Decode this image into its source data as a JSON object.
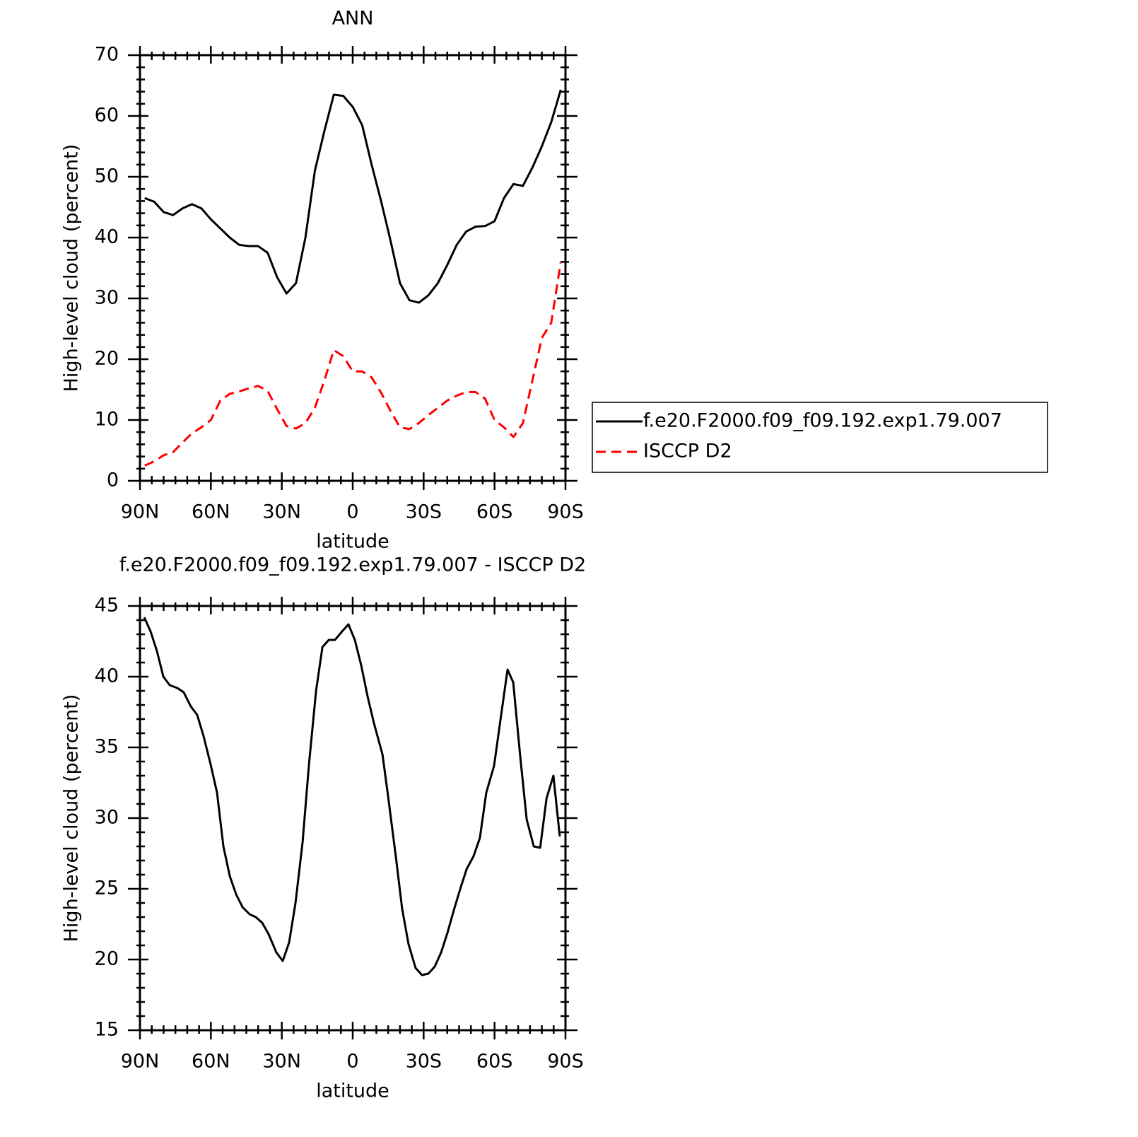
{
  "chart_data": [
    {
      "type": "line",
      "title": "ANN",
      "xlabel": "latitude",
      "ylabel": "High-level cloud (percent)",
      "x": [
        88,
        84,
        80,
        76,
        72,
        68,
        64,
        60,
        56,
        52,
        48,
        44,
        40,
        36,
        32,
        28,
        24,
        20,
        16,
        12,
        8,
        4,
        0,
        -4,
        -8,
        -12,
        -16,
        -20,
        -24,
        -28,
        -32,
        -36,
        -40,
        -44,
        -48,
        -52,
        -56,
        -60,
        -64,
        -68,
        -72,
        -76,
        -80,
        -84,
        -88
      ],
      "series": [
        {
          "name": "ISCCP D2",
          "color": "#ff0000",
          "line_style": "dashed",
          "values": [
            2.5,
            3.2,
            4.2,
            4.7,
            6.3,
            7.8,
            8.8,
            10.0,
            13.2,
            14.3,
            14.7,
            15.2,
            15.6,
            14.8,
            11.8,
            9.0,
            8.6,
            9.5,
            12.0,
            16.5,
            21.5,
            20.5,
            18.0,
            18.0,
            17.0,
            14.5,
            11.5,
            8.8,
            8.5,
            9.5,
            10.8,
            12.0,
            13.2,
            14.0,
            14.6,
            14.6,
            13.5,
            10.0,
            8.8,
            7.2,
            9.5,
            16.5,
            23.5,
            26.0,
            36.0
          ]
        },
        {
          "name": "f.e20.F2000.f09_f09.192.exp1.79.007",
          "color": "#000000",
          "line_style": "solid",
          "values": [
            46.5,
            45.9,
            44.2,
            43.7,
            44.8,
            45.5,
            44.8,
            43.0,
            41.5,
            40.0,
            38.8,
            38.6,
            38.6,
            37.5,
            33.5,
            30.8,
            32.5,
            40.0,
            51.0,
            57.5,
            63.5,
            63.3,
            61.5,
            58.5,
            52.0,
            46.0,
            39.5,
            32.5,
            29.7,
            29.3,
            30.5,
            32.5,
            35.5,
            38.8,
            41.0,
            41.8,
            41.9,
            42.7,
            46.5,
            48.8,
            48.5,
            51.5,
            55.0,
            59.0,
            64.3
          ]
        }
      ],
      "xlim": [
        90,
        -90
      ],
      "xticks": [
        {
          "value": 90,
          "label": "90N"
        },
        {
          "value": 60,
          "label": "60N"
        },
        {
          "value": 30,
          "label": "30N"
        },
        0,
        {
          "value": -30,
          "label": "30S"
        },
        {
          "value": -60,
          "label": "60S"
        },
        {
          "value": -90,
          "label": "90S"
        }
      ],
      "xminor": [
        85,
        80,
        75,
        70,
        65,
        55,
        50,
        45,
        40,
        35,
        25,
        20,
        15,
        10,
        5,
        -5,
        -10,
        -15,
        -20,
        -25,
        -35,
        -40,
        -45,
        -50,
        -55,
        -65,
        -70,
        -75,
        -80,
        -85
      ],
      "ylim": [
        0,
        70
      ],
      "yticks": [
        0,
        10,
        20,
        30,
        40,
        50,
        60,
        70
      ],
      "yminor": [
        2,
        4,
        6,
        8,
        12,
        14,
        16,
        18,
        22,
        24,
        26,
        28,
        32,
        34,
        36,
        38,
        42,
        44,
        46,
        48,
        52,
        54,
        56,
        58,
        62,
        64,
        66,
        68
      ],
      "legend": "right"
    },
    {
      "type": "line",
      "title": "f.e20.F2000.f09_f09.192.exp1.79.007 - ISCCP D2",
      "xlabel": "latitude",
      "ylabel": "High-level cloud (percent)",
      "x": [
        88.2,
        85.5,
        82.8,
        80.1,
        77.4,
        74.2,
        71.5,
        68.5,
        65.8,
        63.1,
        60.1,
        57.4,
        54.7,
        52.0,
        49.3,
        46.6,
        43.6,
        41.0,
        38.3,
        35.6,
        32.3,
        29.6,
        26.9,
        24.2,
        21.2,
        18.5,
        15.5,
        12.8,
        10.1,
        7.5,
        4.5,
        1.8,
        -0.9,
        -3.6,
        -6.3,
        -9.0,
        -12.6,
        -15.0,
        -18.3,
        -20.9,
        -23.6,
        -26.6,
        -29.3,
        -32.0,
        -34.7,
        -37.4,
        -40.1,
        -42.8,
        -45.5,
        -48.2,
        -51.1,
        -53.8,
        -56.5,
        -59.8,
        -62.8,
        -65.5,
        -67.9,
        -70.9,
        -73.6,
        -76.6,
        -79.3,
        -82.0,
        -84.9,
        -87.6
      ],
      "series": [
        {
          "color": "#000000",
          "line_style": "solid",
          "values": [
            44.2,
            43.2,
            41.8,
            40.0,
            39.4,
            39.2,
            38.9,
            37.9,
            37.3,
            35.8,
            33.8,
            31.8,
            28.0,
            25.9,
            24.6,
            23.7,
            23.2,
            23.0,
            22.6,
            21.8,
            20.5,
            19.9,
            21.2,
            24.0,
            28.3,
            33.8,
            39.0,
            42.1,
            42.6,
            42.6,
            43.2,
            43.7,
            42.6,
            40.8,
            38.6,
            36.7,
            34.5,
            31.5,
            27.2,
            23.6,
            21.1,
            19.4,
            18.9,
            19.0,
            19.5,
            20.5,
            21.9,
            23.5,
            25.0,
            26.4,
            27.3,
            28.6,
            31.8,
            33.7,
            37.3,
            40.5,
            39.6,
            34.3,
            29.9,
            28.0,
            27.9,
            31.4,
            33.0,
            28.7
          ]
        }
      ],
      "xlim": [
        90,
        -90
      ],
      "xticks": [
        {
          "value": 90,
          "label": "90N"
        },
        {
          "value": 60,
          "label": "60N"
        },
        {
          "value": 30,
          "label": "30N"
        },
        0,
        {
          "value": -30,
          "label": "30S"
        },
        {
          "value": -60,
          "label": "60S"
        },
        {
          "value": -90,
          "label": "90S"
        }
      ],
      "xminor": [
        85,
        80,
        75,
        70,
        65,
        55,
        50,
        45,
        40,
        35,
        25,
        20,
        15,
        10,
        5,
        -5,
        -10,
        -15,
        -20,
        -25,
        -35,
        -40,
        -45,
        -50,
        -55,
        -65,
        -70,
        -75,
        -80,
        -85
      ],
      "ylim": [
        15,
        45
      ],
      "yticks": [
        15,
        20,
        25,
        30,
        35,
        40,
        45
      ],
      "yminor": [
        16,
        17,
        18,
        19,
        21,
        22,
        23,
        24,
        26,
        27,
        28,
        29,
        31,
        32,
        33,
        34,
        36,
        37,
        38,
        39,
        41,
        42,
        43,
        44
      ]
    }
  ]
}
